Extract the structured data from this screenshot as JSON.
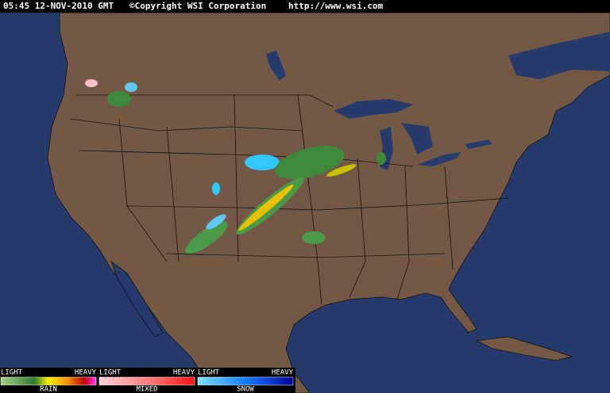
{
  "header": {
    "time": "05:45 12-NOV-2010 GMT",
    "copyright": "©Copyright WSI Corporation",
    "url": "http://www.wsi.com"
  },
  "legend": [
    {
      "light": "LIGHT",
      "heavy": "HEAVY",
      "label": "RAIN"
    },
    {
      "light": "LIGHT",
      "heavy": "HEAVY",
      "label": "MIXED"
    },
    {
      "light": "LIGHT",
      "heavy": "HEAVY",
      "label": "SNOW"
    }
  ]
}
